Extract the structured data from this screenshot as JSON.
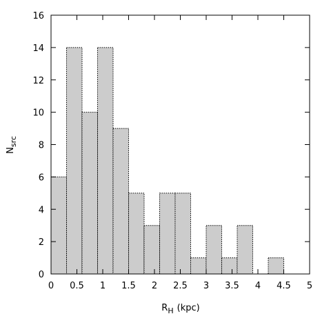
{
  "chart_data": {
    "type": "histogram",
    "xlabel": {
      "main": "R",
      "sub": "H",
      "unit": "(kpc)"
    },
    "ylabel": {
      "main": "N",
      "sub": "src"
    },
    "bins": [
      0,
      0.3,
      0.6,
      0.9,
      1.2,
      1.5,
      1.8,
      2.1,
      2.4,
      2.7,
      3.0,
      3.3,
      3.6,
      3.9,
      4.2,
      4.5
    ],
    "values": [
      6,
      14,
      10,
      14,
      9,
      5,
      3,
      5,
      5,
      1,
      3,
      1,
      3,
      0,
      1
    ],
    "color": "#cccccc",
    "xlim": [
      0,
      5
    ],
    "xticks": [
      0,
      0.5,
      1,
      1.5,
      2,
      2.5,
      3,
      3.5,
      4,
      4.5,
      5
    ],
    "ylim": [
      0,
      16
    ],
    "yticks": [
      0,
      2,
      4,
      6,
      8,
      10,
      12,
      14,
      16
    ]
  }
}
